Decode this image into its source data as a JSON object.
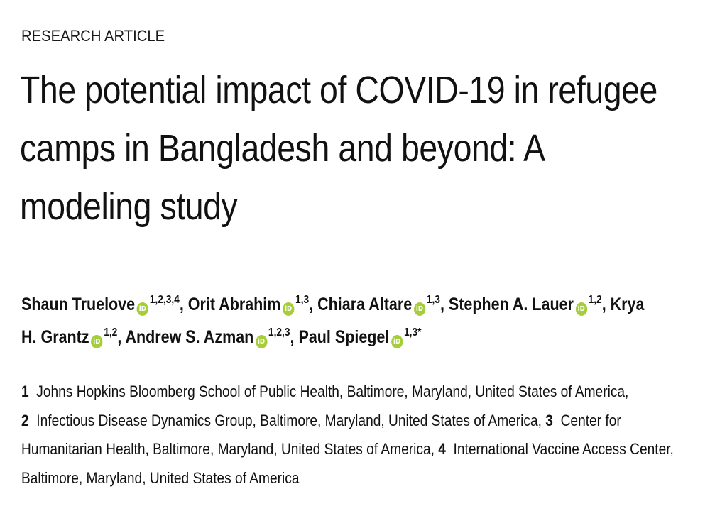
{
  "article_type": "RESEARCH ARTICLE",
  "title_lines": [
    "The potential impact of COVID-19 in refugee",
    "camps in Bangladesh and beyond:  A",
    "modeling study"
  ],
  "orcid_icon_label": "iD",
  "authors": [
    {
      "name": "Shaun Truelove",
      "sup": "1,2,3,4",
      "sep": ", "
    },
    {
      "name": "Orit Abrahim",
      "sup": "1,3",
      "sep": ", "
    },
    {
      "name": "Chiara Altare",
      "sup": "1,3",
      "sep": ", "
    },
    {
      "name": "Stephen A. Lauer",
      "sup": "1,2",
      "sep": ", Krya"
    },
    {
      "name": "H. Grantz",
      "sup": "1,2",
      "sep": ", "
    },
    {
      "name": "Andrew S. Azman",
      "sup": "1,2,3",
      "sep": ", "
    },
    {
      "name": "Paul Spiegel",
      "sup": "1,3",
      "sep": "*"
    }
  ],
  "affiliations": {
    "line1": {
      "num": "1",
      "text": "Johns Hopkins Bloomberg School of Public Health, Baltimore, Maryland, United States of America,"
    },
    "line2": {
      "num": "2",
      "text": "Infectious Disease Dynamics Group, Baltimore, Maryland, United States of America,",
      "num2": "3",
      "text2": "Center for"
    },
    "line3": {
      "text": "Humanitarian Health, Baltimore, Maryland, United States of America,",
      "num": "4",
      "text2": "International Vaccine Access Center,"
    },
    "line4": {
      "text": "Baltimore, Maryland, United States of America"
    }
  },
  "colors": {
    "orcid": "#a6ce39",
    "text": "#111111"
  }
}
